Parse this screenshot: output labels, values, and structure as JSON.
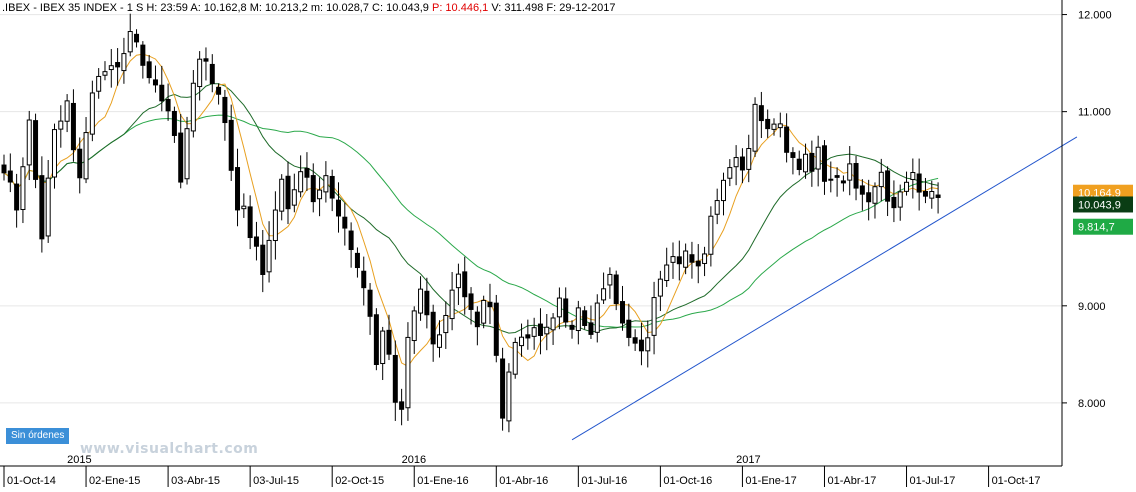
{
  "header": {
    "symbol": ".IBEX",
    "name": "IBEX 35 INDEX",
    "period": "1 S",
    "h": "H: 23:59",
    "a": "A: 10.162,8",
    "mx": "M: 10.213,2",
    "mn": "m: 10.028,7",
    "c": "C: 10.043,9",
    "p": "P: 10.446,1",
    "v": "V: 311.498",
    "f": "F: 29-12-2017"
  },
  "status_badge": "Sin órdenes",
  "watermark": "www.visualchart.com",
  "colors": {
    "candle": "#000000",
    "ma_fast": "#e8a020",
    "ma_mid": "#1f6b2a",
    "ma_slow": "#2aa84a",
    "trendline": "#2255cc",
    "current_tag": "#0a3d14",
    "ma_slow_tag": "#1faa45",
    "ma_fast_tag": "#f0a020",
    "price_p": "#e00000"
  },
  "chart_data": {
    "type": "candlestick",
    "title": ".IBEX - IBEX 35 INDEX - 1 S",
    "y_ticks": [
      "12.000",
      "11.000",
      "9.000",
      "8.000"
    ],
    "y_tick_values": [
      12000,
      11000,
      9000,
      8000
    ],
    "ylim": [
      7350,
      12150
    ],
    "xlim": [
      0,
      167
    ],
    "x_ticks": [
      {
        "label": "01-Oct-14",
        "x": 0
      },
      {
        "label": "02-Ene-15",
        "x": 13
      },
      {
        "label": "03-Abr-15",
        "x": 26
      },
      {
        "label": "03-Jul-15",
        "x": 39
      },
      {
        "label": "02-Oct-15",
        "x": 52
      },
      {
        "label": "01-Ene-16",
        "x": 65
      },
      {
        "label": "01-Abr-16",
        "x": 78
      },
      {
        "label": "01-Jul-16",
        "x": 91
      },
      {
        "label": "01-Oct-16",
        "x": 104
      },
      {
        "label": "01-Ene-17",
        "x": 117
      },
      {
        "label": "01-Abr-17",
        "x": 130
      },
      {
        "label": "01-Jul-17",
        "x": 143
      },
      {
        "label": "01-Oct-17",
        "x": 156
      }
    ],
    "year_labels": [
      {
        "label": "2015",
        "x": 10
      },
      {
        "label": "2016",
        "x": 63
      },
      {
        "label": "2017",
        "x": 116
      }
    ],
    "price_tags": [
      {
        "label": "10.164,9",
        "value": 10164.9,
        "kind": "ma_fast"
      },
      {
        "label": "10.043,9",
        "value": 10043.9,
        "kind": "current"
      },
      {
        "label": "9.814,7",
        "value": 9814.7,
        "kind": "ma_slow"
      }
    ],
    "trendline": {
      "x1": 90,
      "y1": 7620,
      "x2": 170,
      "y2": 10740
    },
    "anchors": [
      [
        0,
        10400
      ],
      [
        1,
        10250
      ],
      [
        2,
        10000
      ],
      [
        3,
        10450
      ],
      [
        4,
        10900
      ],
      [
        5,
        10300
      ],
      [
        6,
        9700
      ],
      [
        7,
        10300
      ],
      [
        8,
        10800
      ],
      [
        9,
        10900
      ],
      [
        10,
        11100
      ],
      [
        11,
        10600
      ],
      [
        12,
        10300
      ],
      [
        13,
        10800
      ],
      [
        14,
        11200
      ],
      [
        15,
        11350
      ],
      [
        16,
        11400
      ],
      [
        17,
        11500
      ],
      [
        18,
        11450
      ],
      [
        19,
        11600
      ],
      [
        20,
        11800
      ],
      [
        21,
        11700
      ],
      [
        22,
        11500
      ],
      [
        23,
        11350
      ],
      [
        24,
        11250
      ],
      [
        25,
        11100
      ],
      [
        26,
        11000
      ],
      [
        27,
        10750
      ],
      [
        28,
        10250
      ],
      [
        29,
        10800
      ],
      [
        30,
        11300
      ],
      [
        31,
        11550
      ],
      [
        32,
        11500
      ],
      [
        33,
        11300
      ],
      [
        34,
        11200
      ],
      [
        35,
        10900
      ],
      [
        36,
        10400
      ],
      [
        37,
        10000
      ],
      [
        38,
        10000
      ],
      [
        39,
        9700
      ],
      [
        40,
        9600
      ],
      [
        41,
        9300
      ],
      [
        42,
        9700
      ],
      [
        43,
        10000
      ],
      [
        44,
        10300
      ],
      [
        45,
        10000
      ],
      [
        46,
        10200
      ],
      [
        47,
        10400
      ],
      [
        48,
        10300
      ],
      [
        49,
        10100
      ],
      [
        50,
        10200
      ],
      [
        51,
        10350
      ],
      [
        52,
        10100
      ],
      [
        53,
        9900
      ],
      [
        54,
        9800
      ],
      [
        55,
        9600
      ],
      [
        56,
        9400
      ],
      [
        57,
        9200
      ],
      [
        58,
        8900
      ],
      [
        59,
        8400
      ],
      [
        60,
        8750
      ],
      [
        61,
        8500
      ],
      [
        62,
        8000
      ],
      [
        63,
        7950
      ],
      [
        64,
        8650
      ],
      [
        65,
        8950
      ],
      [
        66,
        9150
      ],
      [
        67,
        8900
      ],
      [
        68,
        8600
      ],
      [
        69,
        8700
      ],
      [
        70,
        8900
      ],
      [
        71,
        9150
      ],
      [
        72,
        9300
      ],
      [
        73,
        9100
      ],
      [
        74,
        8950
      ],
      [
        75,
        8800
      ],
      [
        76,
        9050
      ],
      [
        77,
        9000
      ],
      [
        78,
        8500
      ],
      [
        79,
        7850
      ],
      [
        80,
        8300
      ],
      [
        81,
        8600
      ],
      [
        82,
        8700
      ],
      [
        83,
        8650
      ],
      [
        84,
        8800
      ],
      [
        85,
        8700
      ],
      [
        86,
        8800
      ],
      [
        87,
        8900
      ],
      [
        88,
        9050
      ],
      [
        89,
        8850
      ],
      [
        90,
        8750
      ],
      [
        91,
        9000
      ],
      [
        92,
        8800
      ],
      [
        93,
        8700
      ],
      [
        94,
        9050
      ],
      [
        95,
        9150
      ],
      [
        96,
        9300
      ],
      [
        97,
        9000
      ],
      [
        98,
        8800
      ],
      [
        99,
        8650
      ],
      [
        100,
        8600
      ],
      [
        101,
        8550
      ],
      [
        102,
        8700
      ],
      [
        103,
        9100
      ],
      [
        104,
        9300
      ],
      [
        105,
        9450
      ],
      [
        106,
        9500
      ],
      [
        107,
        9450
      ],
      [
        108,
        9550
      ],
      [
        109,
        9450
      ],
      [
        110,
        9400
      ],
      [
        111,
        9550
      ],
      [
        112,
        9900
      ],
      [
        113,
        10100
      ],
      [
        114,
        10300
      ],
      [
        115,
        10400
      ],
      [
        116,
        10550
      ],
      [
        117,
        10400
      ],
      [
        118,
        10650
      ],
      [
        119,
        11050
      ],
      [
        120,
        10900
      ],
      [
        121,
        10800
      ],
      [
        122,
        10900
      ],
      [
        123,
        10850
      ],
      [
        124,
        10600
      ],
      [
        125,
        10500
      ],
      [
        126,
        10400
      ],
      [
        127,
        10550
      ],
      [
        128,
        10400
      ],
      [
        129,
        10650
      ],
      [
        130,
        10300
      ],
      [
        131,
        10300
      ],
      [
        132,
        10350
      ],
      [
        133,
        10250
      ],
      [
        134,
        10450
      ],
      [
        135,
        10200
      ],
      [
        136,
        10150
      ],
      [
        137,
        10100
      ],
      [
        138,
        10250
      ],
      [
        139,
        10350
      ],
      [
        140,
        10100
      ],
      [
        141,
        10000
      ],
      [
        142,
        10150
      ],
      [
        143,
        10300
      ],
      [
        144,
        10350
      ],
      [
        145,
        10150
      ],
      [
        146,
        10100
      ],
      [
        147,
        10150
      ],
      [
        148,
        10100
      ]
    ]
  }
}
